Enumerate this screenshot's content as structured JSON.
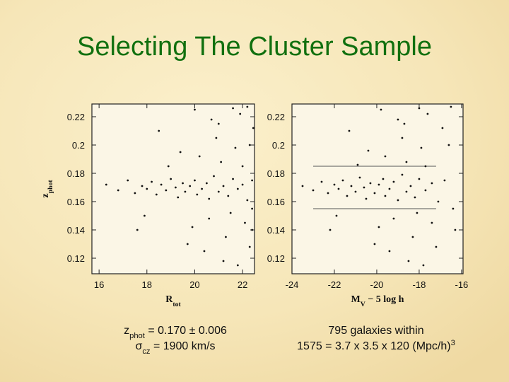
{
  "title": "Selecting The Cluster Sample",
  "captions": [
    {
      "lines": [
        {
          "segments": [
            {
              "text": "z"
            },
            {
              "text": "phot",
              "sub": true
            },
            {
              "text": " = 0.170 ± 0.006"
            }
          ]
        },
        {
          "segments": [
            {
              "text": "σ"
            },
            {
              "text": "cz",
              "sub": true
            },
            {
              "text": " = 1900 km/s"
            }
          ]
        }
      ]
    },
    {
      "lines": [
        {
          "segments": [
            {
              "text": "795 galaxies within"
            }
          ]
        },
        {
          "segments": [
            {
              "text": "1575 = 3.7 x 3.5 x 120 (Mpc/h)"
            },
            {
              "text": "3",
              "sup": true
            }
          ]
        }
      ]
    }
  ],
  "chart_data": [
    {
      "type": "scatter",
      "xlabel": {
        "segments": [
          {
            "text": "R"
          },
          {
            "text": "tot",
            "sub": true
          }
        ]
      },
      "ylabel": {
        "segments": [
          {
            "text": "z"
          },
          {
            "text": "phot",
            "sub": true
          }
        ]
      },
      "xlim": [
        15.7,
        22.5
      ],
      "ylim": [
        0.109,
        0.229
      ],
      "xticks": [
        16,
        18,
        20,
        22
      ],
      "yticks": [
        0.12,
        0.14,
        0.16,
        0.18,
        0.2,
        0.22
      ],
      "color": "#111111",
      "x": [
        16.3,
        16.8,
        17.2,
        17.5,
        17.8,
        18.0,
        18.2,
        18.4,
        18.6,
        18.8,
        19.0,
        19.2,
        19.3,
        19.5,
        19.6,
        19.8,
        20.0,
        20.1,
        20.3,
        20.5,
        20.6,
        20.8,
        21.0,
        21.2,
        21.4,
        21.6,
        21.8,
        22.0,
        22.2,
        22.4,
        18.5,
        19.4,
        19.9,
        20.4,
        20.7,
        20.9,
        21.1,
        21.3,
        21.5,
        21.7,
        21.9,
        22.1,
        22.3,
        22.45,
        21.2,
        20.2,
        22.0,
        21.6,
        22.3,
        19.7,
        17.6,
        18.9,
        22.4,
        21.0,
        20.6,
        22.2,
        21.8,
        17.9,
        20.0,
        22.4
      ],
      "y": [
        0.172,
        0.168,
        0.175,
        0.166,
        0.171,
        0.169,
        0.174,
        0.165,
        0.172,
        0.168,
        0.176,
        0.17,
        0.163,
        0.173,
        0.167,
        0.171,
        0.175,
        0.165,
        0.169,
        0.173,
        0.162,
        0.178,
        0.167,
        0.171,
        0.164,
        0.176,
        0.169,
        0.172,
        0.161,
        0.175,
        0.21,
        0.195,
        0.142,
        0.125,
        0.218,
        0.205,
        0.188,
        0.135,
        0.152,
        0.198,
        0.222,
        0.145,
        0.128,
        0.212,
        0.118,
        0.192,
        0.185,
        0.226,
        0.2,
        0.13,
        0.14,
        0.185,
        0.155,
        0.215,
        0.148,
        0.227,
        0.115,
        0.15,
        0.225,
        0.14
      ]
    },
    {
      "type": "scatter",
      "xlabel": {
        "segments": [
          {
            "text": "M"
          },
          {
            "text": "V",
            "sub": true
          },
          {
            "text": " − 5 log h"
          }
        ]
      },
      "xlim": [
        -24,
        -15.93
      ],
      "ylim": [
        0.109,
        0.229
      ],
      "xticks": [
        -24,
        -22,
        -20,
        -18,
        -16
      ],
      "yticks": [
        0.12,
        0.14,
        0.16,
        0.18,
        0.2,
        0.22
      ],
      "color": "#111111",
      "hlines": {
        "y": [
          0.185,
          0.155
        ],
        "x": [
          -23,
          -17.2
        ]
      },
      "x": [
        -23.5,
        -23.0,
        -22.6,
        -22.3,
        -22.0,
        -21.8,
        -21.6,
        -21.4,
        -21.2,
        -21.0,
        -20.8,
        -20.6,
        -20.5,
        -20.3,
        -20.1,
        -19.9,
        -19.7,
        -19.6,
        -19.4,
        -19.2,
        -19.0,
        -18.8,
        -18.6,
        -18.4,
        -18.2,
        -18.0,
        -17.7,
        -17.4,
        -17.1,
        -16.8,
        -21.3,
        -20.4,
        -19.9,
        -19.4,
        -19.0,
        -18.8,
        -18.6,
        -18.3,
        -18.1,
        -17.9,
        -17.6,
        -17.4,
        -17.2,
        -16.9,
        -18.5,
        -19.6,
        -17.7,
        -18.0,
        -16.6,
        -20.1,
        -22.2,
        -20.9,
        -16.4,
        -18.7,
        -19.2,
        -16.5,
        -17.8,
        -21.9,
        -19.8,
        -16.3
      ],
      "y": [
        0.171,
        0.168,
        0.174,
        0.166,
        0.172,
        0.169,
        0.175,
        0.164,
        0.171,
        0.167,
        0.177,
        0.17,
        0.162,
        0.173,
        0.166,
        0.172,
        0.176,
        0.164,
        0.169,
        0.174,
        0.161,
        0.179,
        0.167,
        0.171,
        0.163,
        0.176,
        0.168,
        0.173,
        0.16,
        0.175,
        0.21,
        0.196,
        0.142,
        0.125,
        0.218,
        0.205,
        0.188,
        0.135,
        0.152,
        0.198,
        0.222,
        0.145,
        0.128,
        0.212,
        0.118,
        0.192,
        0.185,
        0.226,
        0.2,
        0.13,
        0.14,
        0.186,
        0.155,
        0.215,
        0.148,
        0.227,
        0.115,
        0.15,
        0.225,
        0.14
      ]
    }
  ]
}
